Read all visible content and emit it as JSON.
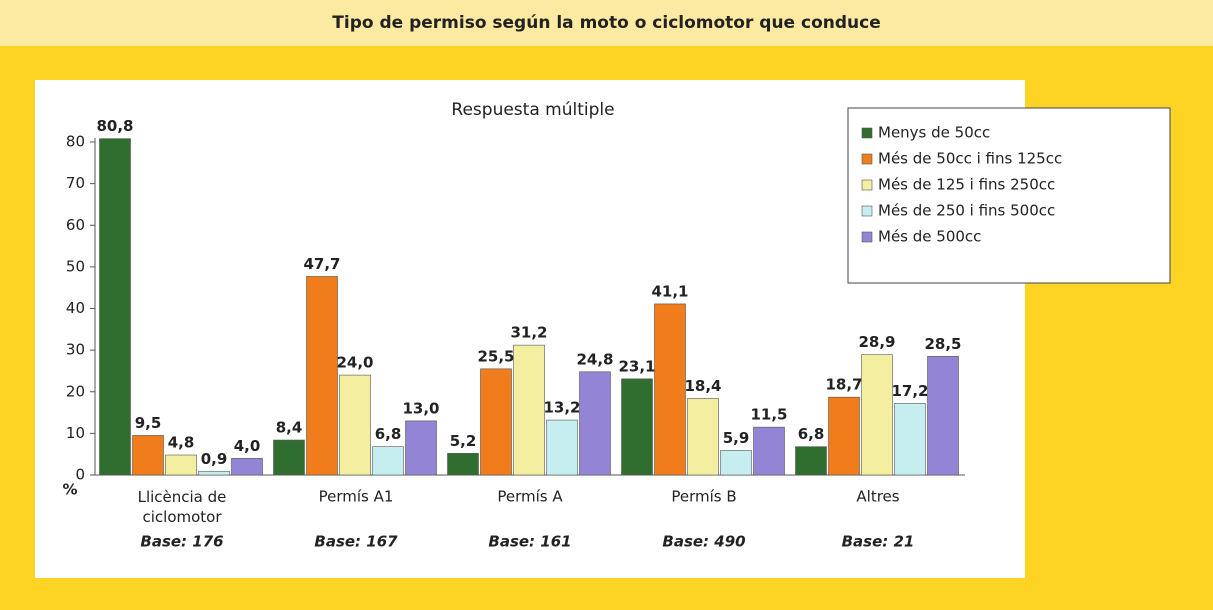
{
  "header": {
    "title": "Tipo de permiso según la moto o ciclomotor que conduce"
  },
  "chart_data": {
    "type": "bar",
    "subtitle": "Respuesta múltiple",
    "y_label": "%",
    "categories": [
      "Llicència de ciclomotor",
      "Permís A1",
      "Permís A",
      "Permís B",
      "Altres"
    ],
    "bases": [
      "Base: 176",
      "Base: 167",
      "Base: 161",
      "Base: 490",
      "Base: 21"
    ],
    "ylim": [
      0,
      80
    ],
    "yticks": [
      0,
      10,
      20,
      30,
      40,
      50,
      60,
      70,
      80
    ],
    "legend": "top-right",
    "series": [
      {
        "name": "Menys de 50cc",
        "color": "#2f6e2f",
        "values": [
          80.8,
          8.4,
          5.2,
          23.1,
          6.8
        ],
        "value_labels": [
          "80,8",
          "8,4",
          "5,2",
          "23,1",
          "6,8"
        ]
      },
      {
        "name": "Més de 50cc i fins 125cc",
        "color": "#f07c1c",
        "values": [
          9.5,
          47.7,
          25.5,
          41.1,
          18.7
        ],
        "value_labels": [
          "9,5",
          "47,7",
          "25,5",
          "41,1",
          "18,7"
        ]
      },
      {
        "name": "Més de 125 i fins 250cc",
        "color": "#f3eea0",
        "values": [
          4.8,
          24.0,
          31.2,
          18.4,
          28.9
        ],
        "value_labels": [
          "4,8",
          "24,0",
          "31,2",
          "18,4",
          "28,9"
        ]
      },
      {
        "name": "Més de 250 i fins 500cc",
        "color": "#c6eef0",
        "values": [
          0.9,
          6.8,
          13.2,
          5.9,
          17.2
        ],
        "value_labels": [
          "0,9",
          "6,8",
          "13,2",
          "5,9",
          "17,2"
        ]
      },
      {
        "name": "Més de 500cc",
        "color": "#9484d6",
        "values": [
          4.0,
          13.0,
          24.8,
          11.5,
          28.5
        ],
        "value_labels": [
          "4,0",
          "13,0",
          "24,8",
          "11,5",
          "28,5"
        ]
      }
    ]
  }
}
